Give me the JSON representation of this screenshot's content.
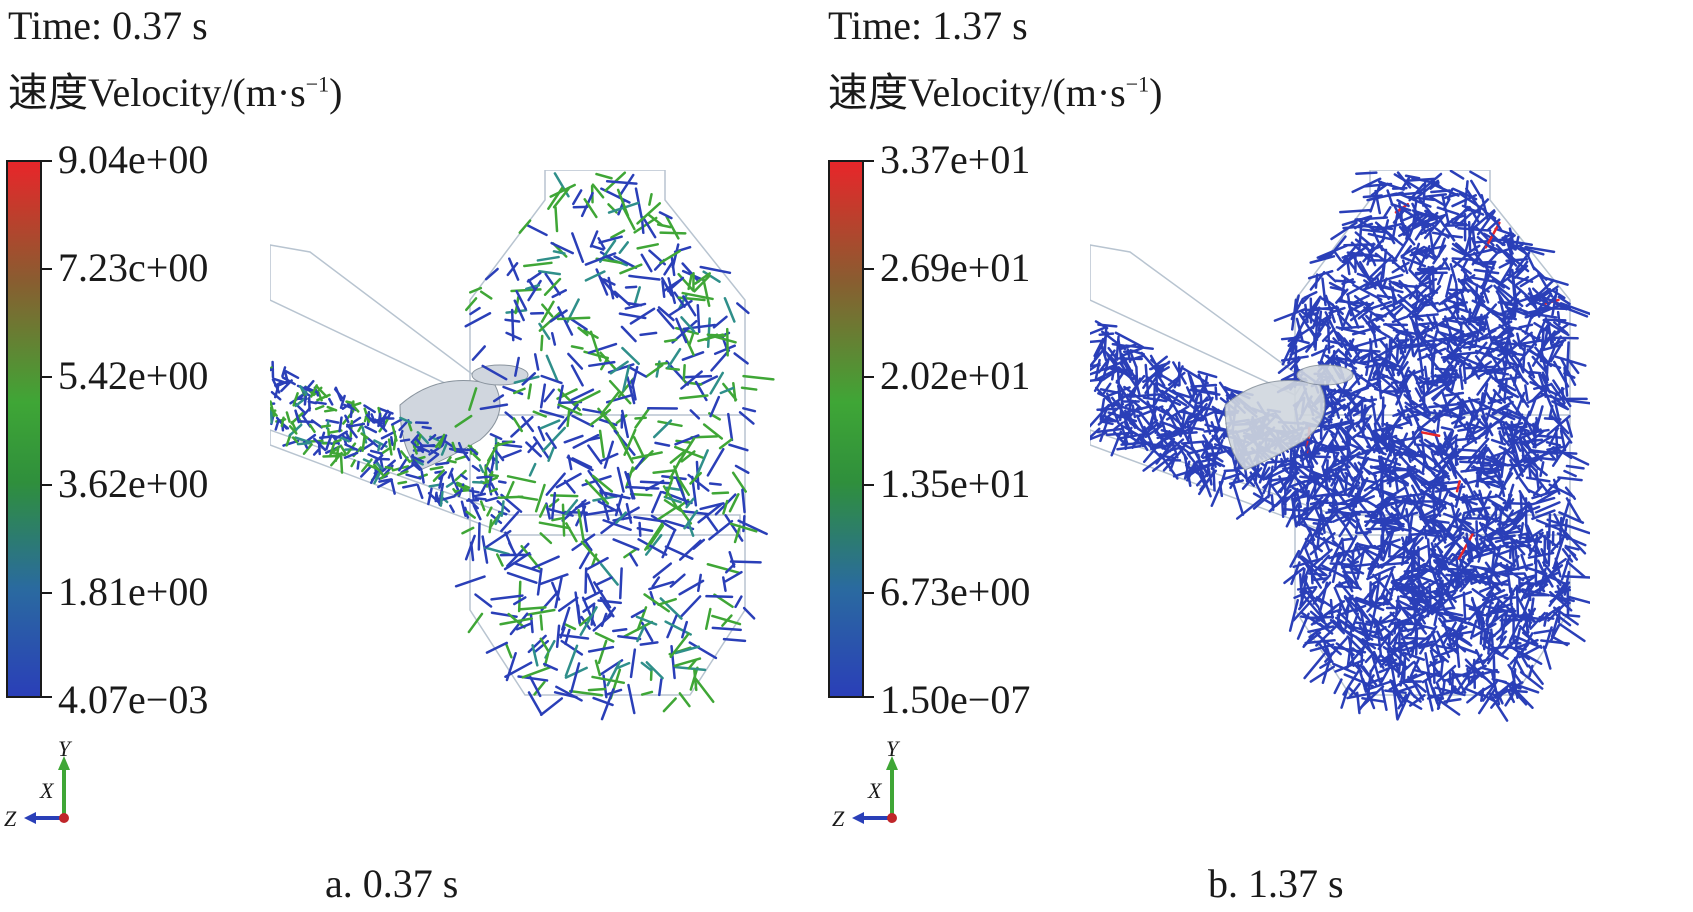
{
  "panel_a": {
    "time": "Time: 0.37 s",
    "velocity_label": "速度Velocity/(m·s",
    "velocity_exp": "−1",
    "velocity_close": ")",
    "ticks": [
      "9.04e+00",
      "7.23c+00",
      "5.42e+00",
      "3.62e+00",
      "1.81e+00",
      "4.07e−03"
    ],
    "axes": {
      "y": "Y",
      "x": "X",
      "z": "Z"
    }
  },
  "panel_b": {
    "time": "Time: 1.37 s",
    "velocity_label": "速度Velocity/(m·s",
    "velocity_exp": "−1",
    "velocity_close": ")",
    "ticks": [
      "3.37e+01",
      "2.69e+01",
      "2.02e+01",
      "1.35e+01",
      "6.73e+00",
      "1.50e−07"
    ],
    "axes": {
      "y": "Y",
      "x": "X",
      "z": "Z"
    }
  },
  "captions": {
    "a": "a. 0.37 s",
    "b": "b. 1.37 s"
  },
  "colors": {
    "low": "#2a3fb8",
    "mid": "#3fa636",
    "high": "#e8262a",
    "mesh": "#b8c4d0"
  }
}
